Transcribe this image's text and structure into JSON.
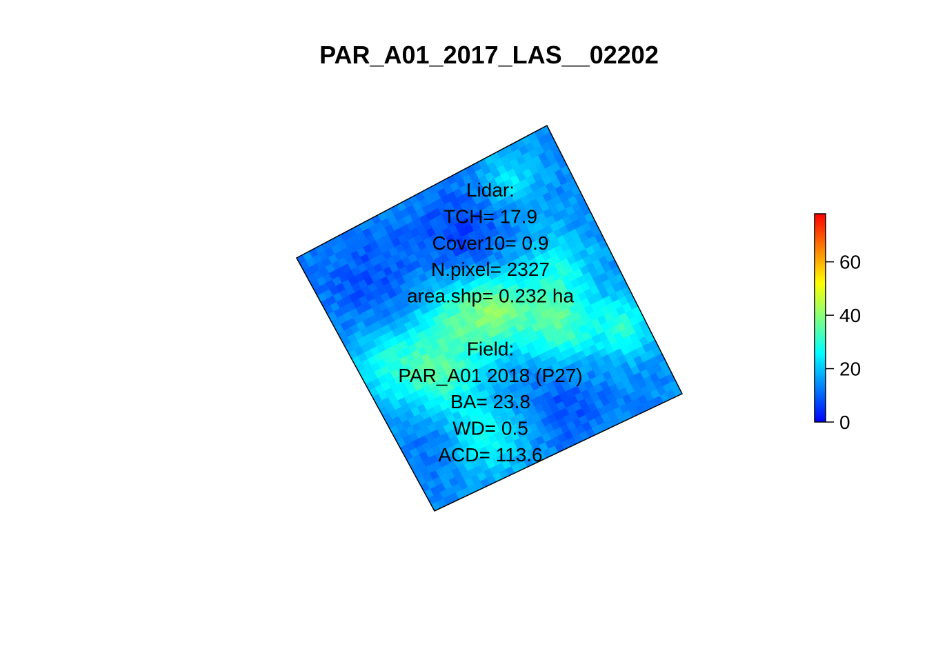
{
  "chart_data": {
    "type": "heatmap",
    "title": "PAR_A01_2017_LAS__02202",
    "xlabel": "",
    "ylabel": "",
    "plot_rotation_deg": -26,
    "grid_cols": 40,
    "grid_rows": 40,
    "blobs": [
      {
        "u": 0.2,
        "v": 0.2,
        "r": 0.18,
        "h": -6
      },
      {
        "u": 0.55,
        "v": 0.2,
        "r": 0.16,
        "h": -8
      },
      {
        "u": 0.8,
        "v": 0.1,
        "r": 0.1,
        "h": 10
      },
      {
        "u": 0.12,
        "v": 0.48,
        "r": 0.14,
        "h": 14
      },
      {
        "u": 0.4,
        "v": 0.45,
        "r": 0.16,
        "h": 16
      },
      {
        "u": 0.55,
        "v": 0.48,
        "r": 0.13,
        "h": 18
      },
      {
        "u": 0.8,
        "v": 0.45,
        "r": 0.14,
        "h": 12
      },
      {
        "u": 0.25,
        "v": 0.6,
        "r": 0.12,
        "h": 15
      },
      {
        "u": 0.72,
        "v": 0.62,
        "r": 0.12,
        "h": 18
      },
      {
        "u": 0.92,
        "v": 0.72,
        "r": 0.1,
        "h": 16
      },
      {
        "u": 0.3,
        "v": 0.85,
        "r": 0.13,
        "h": 13
      },
      {
        "u": 0.6,
        "v": 0.88,
        "r": 0.12,
        "h": -6
      },
      {
        "u": 0.1,
        "v": 0.8,
        "r": 0.1,
        "h": -3
      }
    ],
    "base_value": 14,
    "annotations": [
      "Lidar:",
      "TCH= 17.9",
      "Cover10= 0.9",
      "N.pixel= 2327",
      "area.shp= 0.232 ha",
      "",
      "Field:",
      "PAR_A01 2018 (P27)",
      "BA= 23.8",
      "WD= 0.5",
      "ACD= 113.6"
    ],
    "legend": {
      "min": 0,
      "max": 78,
      "ticks": [
        0,
        20,
        40,
        60
      ],
      "colors": [
        "#0000FF",
        "#0080FF",
        "#00FFFF",
        "#80FF80",
        "#FFFF00",
        "#FF8000",
        "#FF0000"
      ]
    }
  }
}
